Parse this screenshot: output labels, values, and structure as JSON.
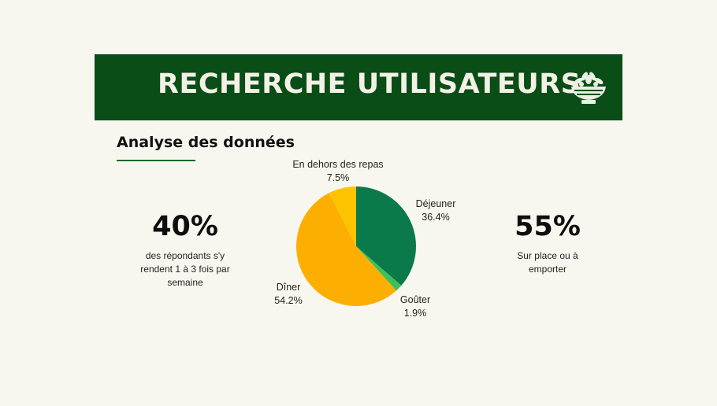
{
  "banner": {
    "title": "RECHERCHE UTILISATEURS",
    "icon": "salad-bowl-icon"
  },
  "section": {
    "heading": "Analyse des données"
  },
  "stats": [
    {
      "value": "40%",
      "caption_lines": [
        "des répondants s'y",
        "rendent 1 à 3 fois par",
        "semaine"
      ]
    },
    {
      "value": "55%",
      "caption_lines": [
        "Sur place ou à",
        "emporter"
      ]
    }
  ],
  "colors": {
    "background": "#f8f7ef",
    "banner": "#0a4d16",
    "dejeuner": "#0b7a4b",
    "gouter": "#3fbf5a",
    "diner": "#fcaf00",
    "hors_repas": "#fdc300"
  },
  "chart_data": {
    "type": "pie",
    "categories": [
      "Déjeuner",
      "Goûter",
      "Dîner",
      "En dehors des repas"
    ],
    "values": [
      36.4,
      1.9,
      54.2,
      7.5
    ],
    "value_labels": [
      "36.4%",
      "1.9%",
      "54.2%",
      "7.5%"
    ]
  }
}
